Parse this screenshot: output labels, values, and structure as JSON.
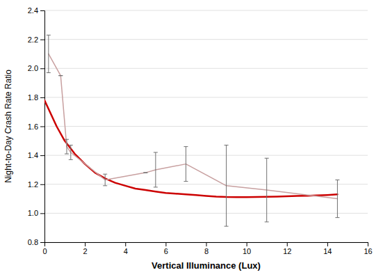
{
  "chart_data": {
    "type": "line",
    "x_label": "Vertical Illuminance (Lux)",
    "y_label": "Night-to-Day Crash Rate Ratio",
    "xlim": [
      0,
      16
    ],
    "ylim": [
      0.8,
      2.4
    ],
    "xticks": [
      0,
      2,
      4,
      6,
      8,
      10,
      12,
      14,
      16
    ],
    "yticks": [
      0.8,
      {
        "value": 1.0,
        "label": "1.0"
      },
      1.2,
      1.4,
      1.6,
      1.8,
      {
        "value": 2.0,
        "label": "2.0"
      },
      2.2,
      2.4
    ],
    "grid": "y",
    "series": [
      {
        "x": [
          0.2,
          0.8,
          1.1,
          1.3,
          3.0,
          5.0,
          5.5,
          7.0,
          9.0,
          11.0,
          14.5
        ],
        "values": [
          2.1,
          1.95,
          1.46,
          1.42,
          1.23,
          1.28,
          1.3,
          1.34,
          1.19,
          1.16,
          1.1
        ],
        "errors": [
          0.13,
          0.0,
          0.05,
          0.05,
          0.04,
          0.0,
          0.12,
          0.12,
          0.28,
          0.22,
          0.13
        ],
        "color": "#c8a0a0"
      },
      {
        "x": [
          0.0,
          0.3,
          0.6,
          1.0,
          1.5,
          2.0,
          2.5,
          3.0,
          3.5,
          4.0,
          4.5,
          5.0,
          5.5,
          6.0,
          6.5,
          7.0,
          7.5,
          8.0,
          8.5,
          9.0,
          9.5,
          10.0,
          10.5,
          11.0,
          11.5,
          12.0,
          12.5,
          13.0,
          13.5,
          14.0,
          14.5
        ],
        "values": [
          1.78,
          1.69,
          1.6,
          1.5,
          1.41,
          1.34,
          1.28,
          1.24,
          1.21,
          1.19,
          1.17,
          1.16,
          1.15,
          1.14,
          1.135,
          1.13,
          1.125,
          1.12,
          1.115,
          1.112,
          1.111,
          1.111,
          1.112,
          1.113,
          1.115,
          1.117,
          1.119,
          1.121,
          1.123,
          1.126,
          1.13
        ],
        "color": "#cc0000"
      }
    ]
  }
}
